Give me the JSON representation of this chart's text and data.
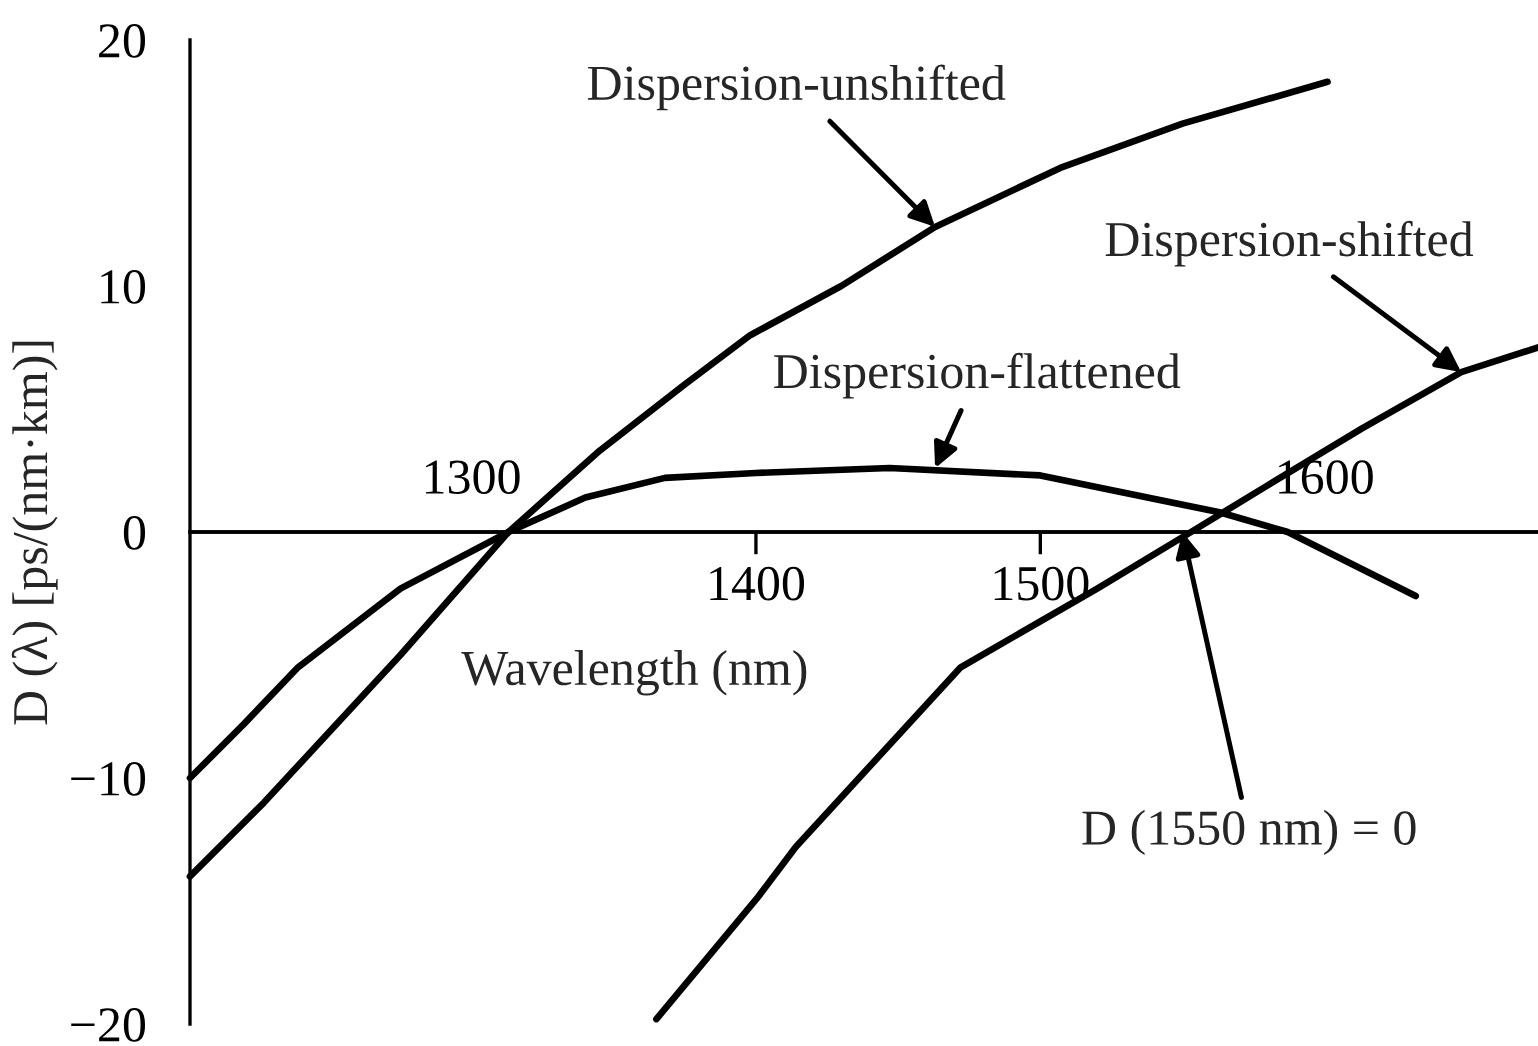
{
  "chart_data": {
    "type": "line",
    "xlabel": "Wavelength (nm)",
    "ylabel": "D (λ) [ps/(nm·km)]",
    "series": [
      {
        "color": "#000000",
        "x": [
          1201,
          1227,
          1275,
          1313,
          1345,
          1375,
          1398,
          1430,
          1463,
          1507,
          1550,
          1601
        ],
        "values": [
          -14.0,
          -11.0,
          -5.0,
          0,
          3.3,
          6.0,
          8.0,
          10.0,
          12.4,
          14.8,
          16.6,
          18.3
        ]
      },
      {
        "color": "#000000",
        "x": [
          1201,
          1220,
          1239,
          1275,
          1313,
          1340,
          1368,
          1400,
          1447,
          1500,
          1563,
          1587,
          1632
        ],
        "values": [
          -10.0,
          -7.8,
          -5.5,
          -2.3,
          0,
          1.4,
          2.2,
          2.4,
          2.6,
          2.3,
          0.8,
          0,
          -2.6
        ]
      },
      {
        "color": "#000000",
        "x": [
          1365,
          1401,
          1414,
          1472,
          1520,
          1553,
          1580,
          1613,
          1648,
          1675
        ],
        "values": [
          -19.8,
          -14.8,
          -12.8,
          -5.5,
          -2.3,
          0,
          1.9,
          4.2,
          6.5,
          7.5
        ]
      }
    ],
    "annotations": [
      {
        "text": "Dispersion-unshifted",
        "x": 1463,
        "y": 12.4
      },
      {
        "text": "Dispersion-shifted",
        "x": 1648,
        "y": 6.5
      },
      {
        "text": "Dispersion-flattened",
        "x": 1463,
        "y": 2.6
      },
      {
        "text": "D (1550 nm) = 0",
        "x": 1550,
        "y": 0
      }
    ],
    "xlim": [
      1201,
      1675
    ],
    "ylim": [
      -20,
      20
    ],
    "xticks": [
      1400,
      1500
    ],
    "x2lim": [
      1201,
      1675
    ],
    "x2ticks": [
      1300,
      1600
    ],
    "yticks": [
      20,
      10,
      0,
      {
        "value": -10,
        "label": "−10"
      },
      {
        "value": -20,
        "label": "−20"
      }
    ],
    "grid": false,
    "legend": false,
    "marker": "none",
    "line_style": "solid"
  }
}
